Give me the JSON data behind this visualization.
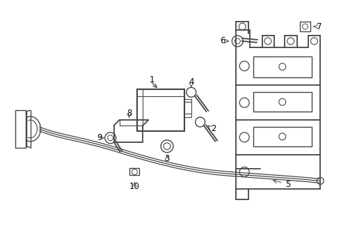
{
  "bg_color": "#ffffff",
  "line_color": "#444444",
  "text_color": "#000000",
  "label_fontsize": 8.5,
  "fig_width": 4.9,
  "fig_height": 3.6,
  "dpi": 100
}
